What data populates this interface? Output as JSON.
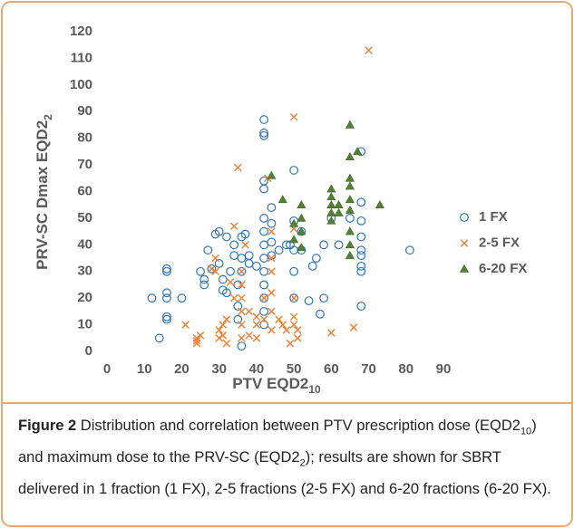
{
  "chart_data": {
    "type": "scatter",
    "x_label": "PTV EQD2",
    "x_label_sub": "10",
    "y_label": "PRV-SC Dmax EQD2",
    "y_label_sub": "2",
    "xlim": [
      0,
      90
    ],
    "xticks": [
      0,
      10,
      20,
      30,
      40,
      50,
      60,
      70,
      80,
      90
    ],
    "ylim": [
      0,
      120
    ],
    "yticks": [
      0,
      10,
      20,
      30,
      40,
      50,
      60,
      70,
      80,
      90,
      100,
      110,
      120
    ],
    "legend": "right",
    "series": [
      {
        "name": "1 FX",
        "marker": "circle",
        "color": "#2e75b6",
        "x": [
          12,
          14,
          16,
          16,
          16,
          16,
          16,
          16,
          20,
          25,
          26,
          26,
          27,
          28,
          29,
          30,
          30,
          31,
          31,
          32,
          32,
          33,
          34,
          34,
          35,
          35,
          35,
          36,
          36,
          36,
          36,
          37,
          38,
          38,
          40,
          42,
          42,
          42,
          42,
          42,
          42,
          42,
          42,
          42,
          42,
          42,
          42,
          42,
          42,
          44,
          44,
          44,
          44,
          46,
          48,
          49,
          50,
          50,
          50,
          50,
          50,
          52,
          52,
          54,
          55,
          56,
          57,
          58,
          58,
          60,
          62,
          65,
          68,
          68,
          68,
          68,
          68,
          68,
          68,
          68,
          68,
          81
        ],
        "values": [
          20,
          5,
          30,
          31,
          22,
          20,
          13,
          12,
          20,
          30,
          27,
          25,
          38,
          31,
          44,
          45,
          33,
          27,
          23,
          22,
          43,
          30,
          40,
          36,
          25,
          17,
          12,
          43,
          35,
          30,
          2,
          44,
          36,
          33,
          32,
          87,
          82,
          81,
          64,
          61,
          50,
          45,
          40,
          35,
          30,
          25,
          20,
          15,
          10,
          54,
          48,
          41,
          36,
          38,
          40,
          40,
          68,
          49,
          38,
          30,
          20,
          45,
          38,
          19,
          32,
          35,
          14,
          40,
          20,
          50,
          40,
          50,
          75,
          56,
          49,
          43,
          38,
          36,
          32,
          30,
          17,
          38
        ]
      },
      {
        "name": "2-5 FX",
        "marker": "x",
        "color": "#ed7d31",
        "x": [
          21,
          24,
          24,
          24,
          25,
          28,
          29,
          29,
          30,
          30,
          31,
          31,
          32,
          32,
          33,
          34,
          34,
          35,
          36,
          36,
          36,
          36,
          36,
          36,
          37,
          38,
          38,
          40,
          40,
          40,
          42,
          42,
          43,
          44,
          44,
          44,
          44,
          44,
          44,
          46,
          47,
          48,
          49,
          50,
          50,
          50,
          50,
          50,
          51,
          51,
          60,
          66,
          70
        ],
        "values": [
          10,
          5,
          4,
          3,
          6,
          31,
          35,
          30,
          8,
          5,
          10,
          6,
          12,
          3,
          26,
          47,
          20,
          69,
          30,
          25,
          20,
          15,
          10,
          5,
          40,
          15,
          6,
          13,
          10,
          5,
          20,
          12,
          65,
          45,
          35,
          30,
          22,
          15,
          8,
          12,
          10,
          8,
          3,
          88,
          46,
          20,
          13,
          10,
          8,
          5,
          7,
          9,
          113
        ]
      },
      {
        "name": "6-20 FX",
        "marker": "triangle",
        "color": "#548235",
        "x": [
          44,
          47,
          50,
          50,
          52,
          52,
          52,
          52,
          60,
          60,
          60,
          60,
          60,
          62,
          62,
          65,
          65,
          65,
          65,
          65,
          65,
          65,
          65,
          65,
          67,
          73
        ],
        "values": [
          66,
          57,
          48,
          42,
          55,
          50,
          45,
          39,
          61,
          58,
          55,
          52,
          49,
          52,
          55,
          85,
          73,
          65,
          62,
          57,
          53,
          45,
          40,
          36,
          75,
          55
        ]
      }
    ]
  },
  "caption": {
    "label": "Figure 2",
    "text": [
      " Distribution and correlation between PTV prescription dose (EQD2",
      "10",
      ") and maximum dose to the PRV-SC (EQD2",
      "2",
      "); results are shown for SBRT delivered in 1 fraction (1 FX), 2-5 fractions (2-5 FX) and 6-20 fractions (6-20 FX)."
    ]
  }
}
